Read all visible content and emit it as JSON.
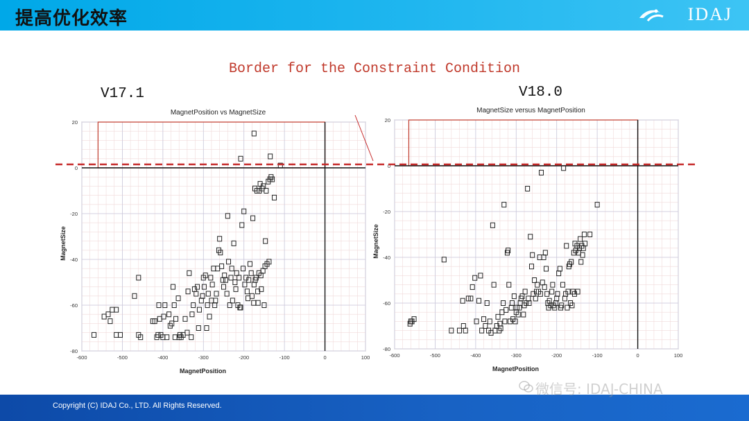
{
  "slide": {
    "title": "提高优化效率",
    "logo_text": "IDAJ",
    "subtitle": "Border for the Constraint Condition",
    "copyright": "Copyright (C) IDAJ Co., LTD. All Rights Reserved.",
    "watermark": "微信号: IDAJ-CHINA",
    "colors": {
      "header": "#00a8e8",
      "footer": "#0d4aa8",
      "border_line": "#c62828",
      "feasible_box": "#c0392b"
    }
  },
  "chart_data": [
    {
      "type": "scatter",
      "version_label": "V17.1",
      "title": "MagnetPosition vs MagnetSize",
      "xlabel": "MagnetPosition",
      "ylabel": "MagnetSize",
      "xlim": [
        -600,
        100
      ],
      "ylim": [
        -80,
        20
      ],
      "xticks": [
        -600,
        -500,
        -400,
        -300,
        -200,
        -100,
        0,
        100
      ],
      "yticks": [
        -80,
        -60,
        -40,
        -20,
        0,
        20
      ],
      "grid": true,
      "marker": "open-square",
      "feasible_region": {
        "x": [
          -560,
          0
        ],
        "y": [
          0,
          20
        ]
      },
      "points": [
        [
          -570,
          -73
        ],
        [
          -545,
          -65
        ],
        [
          -535,
          -64
        ],
        [
          -530,
          -67
        ],
        [
          -525,
          -62
        ],
        [
          -515,
          -62
        ],
        [
          -515,
          -73
        ],
        [
          -505,
          -73
        ],
        [
          -470,
          -56
        ],
        [
          -460,
          -48
        ],
        [
          -460,
          -73
        ],
        [
          -455,
          -74
        ],
        [
          -425,
          -67
        ],
        [
          -420,
          -67
        ],
        [
          -415,
          -74
        ],
        [
          -412,
          -73
        ],
        [
          -410,
          -60
        ],
        [
          -408,
          -66
        ],
        [
          -405,
          -73
        ],
        [
          -400,
          -74
        ],
        [
          -398,
          -65
        ],
        [
          -395,
          -60
        ],
        [
          -390,
          -74
        ],
        [
          -385,
          -64
        ],
        [
          -382,
          -69
        ],
        [
          -378,
          -68
        ],
        [
          -375,
          -52
        ],
        [
          -372,
          -60
        ],
        [
          -370,
          -74
        ],
        [
          -368,
          -66
        ],
        [
          -362,
          -57
        ],
        [
          -360,
          -74
        ],
        [
          -358,
          -73
        ],
        [
          -355,
          -74
        ],
        [
          -350,
          -73
        ],
        [
          -345,
          -66
        ],
        [
          -340,
          -72
        ],
        [
          -338,
          -54
        ],
        [
          -335,
          -46
        ],
        [
          -330,
          -74
        ],
        [
          -328,
          -64
        ],
        [
          -325,
          -60
        ],
        [
          -322,
          -53
        ],
        [
          -318,
          -55
        ],
        [
          -315,
          -52
        ],
        [
          -312,
          -70
        ],
        [
          -310,
          -62
        ],
        [
          -305,
          -58
        ],
        [
          -302,
          -56
        ],
        [
          -300,
          -48
        ],
        [
          -298,
          -52
        ],
        [
          -295,
          -47
        ],
        [
          -292,
          -70
        ],
        [
          -290,
          -60
        ],
        [
          -288,
          -55
        ],
        [
          -285,
          -65
        ],
        [
          -282,
          -48
        ],
        [
          -280,
          -58
        ],
        [
          -278,
          -51
        ],
        [
          -275,
          -44
        ],
        [
          -272,
          -60
        ],
        [
          -270,
          -58
        ],
        [
          -268,
          -55
        ],
        [
          -265,
          -44
        ],
        [
          -262,
          -36
        ],
        [
          -260,
          -31
        ],
        [
          -258,
          -37
        ],
        [
          -255,
          -43
        ],
        [
          -252,
          -49
        ],
        [
          -250,
          -52
        ],
        [
          -248,
          -47
        ],
        [
          -245,
          -49
        ],
        [
          -242,
          -55
        ],
        [
          -240,
          -21
        ],
        [
          -238,
          -41
        ],
        [
          -235,
          -60
        ],
        [
          -232,
          -48
        ],
        [
          -230,
          -44
        ],
        [
          -228,
          -58
        ],
        [
          -225,
          -33
        ],
        [
          -222,
          -50
        ],
        [
          -220,
          -53
        ],
        [
          -218,
          -46
        ],
        [
          -215,
          -60
        ],
        [
          -212,
          -48
        ],
        [
          -210,
          -61
        ],
        [
          -208,
          -61
        ],
        [
          -205,
          -25
        ],
        [
          -202,
          -44
        ],
        [
          -200,
          -19
        ],
        [
          -198,
          -51
        ],
        [
          -195,
          -48
        ],
        [
          -192,
          -54
        ],
        [
          -190,
          -57
        ],
        [
          -188,
          -49
        ],
        [
          -185,
          -42
        ],
        [
          -182,
          -46
        ],
        [
          -180,
          -56
        ],
        [
          -178,
          -22
        ],
        [
          -176,
          -59
        ],
        [
          -175,
          -51
        ],
        [
          -173,
          -9
        ],
        [
          -172,
          -49
        ],
        [
          -170,
          -48
        ],
        [
          -168,
          -10
        ],
        [
          -166,
          -54
        ],
        [
          -165,
          -59
        ],
        [
          -163,
          -46
        ],
        [
          -162,
          -10
        ],
        [
          -160,
          -7
        ],
        [
          -158,
          -47
        ],
        [
          -157,
          -53
        ],
        [
          -155,
          -9
        ],
        [
          -153,
          -45
        ],
        [
          -152,
          -8
        ],
        [
          -150,
          -60
        ],
        [
          -148,
          -43
        ],
        [
          -147,
          -32
        ],
        [
          -145,
          -10
        ],
        [
          -143,
          -42
        ],
        [
          -140,
          -6
        ],
        [
          -138,
          -41
        ],
        [
          -136,
          -5
        ],
        [
          -133,
          -4
        ],
        [
          -130,
          -5
        ],
        [
          -125,
          -13
        ],
        [
          -208,
          4
        ],
        [
          -175,
          15
        ],
        [
          -135,
          5
        ],
        [
          -110,
          1
        ]
      ]
    },
    {
      "type": "scatter",
      "version_label": "V18.0",
      "title": "MagnetSize versus MagnetPosition",
      "xlabel": "MagnetPosition",
      "ylabel": "MagnetSize",
      "xlim": [
        -600,
        100
      ],
      "ylim": [
        -80,
        20
      ],
      "xticks": [
        -600,
        -500,
        -400,
        -300,
        -200,
        -100,
        0,
        100
      ],
      "yticks": [
        -80,
        -60,
        -40,
        -20,
        0,
        20
      ],
      "grid": true,
      "marker": "open-square",
      "feasible_region": {
        "x": [
          -565,
          0
        ],
        "y": [
          0,
          20
        ]
      },
      "points": [
        [
          -562,
          -69
        ],
        [
          -560,
          -68
        ],
        [
          -557,
          -68
        ],
        [
          -552,
          -67
        ],
        [
          -478,
          -41
        ],
        [
          -460,
          -72
        ],
        [
          -440,
          -72
        ],
        [
          -432,
          -59
        ],
        [
          -430,
          -70
        ],
        [
          -425,
          -72
        ],
        [
          -418,
          -58
        ],
        [
          -412,
          -58
        ],
        [
          -408,
          -53
        ],
        [
          -402,
          -49
        ],
        [
          -398,
          -68
        ],
        [
          -392,
          -59
        ],
        [
          -388,
          -48
        ],
        [
          -385,
          -72
        ],
        [
          -380,
          -67
        ],
        [
          -376,
          -70
        ],
        [
          -372,
          -60
        ],
        [
          -368,
          -72
        ],
        [
          -365,
          -68
        ],
        [
          -362,
          -73
        ],
        [
          -358,
          -26
        ],
        [
          -355,
          -52
        ],
        [
          -352,
          -72
        ],
        [
          -348,
          -70
        ],
        [
          -345,
          -66
        ],
        [
          -342,
          -72
        ],
        [
          -340,
          -69
        ],
        [
          -338,
          -71
        ],
        [
          -335,
          -64
        ],
        [
          -332,
          -60
        ],
        [
          -330,
          -17
        ],
        [
          -328,
          -68
        ],
        [
          -325,
          -63
        ],
        [
          -322,
          -38
        ],
        [
          -320,
          -37
        ],
        [
          -318,
          -52
        ],
        [
          -315,
          -68
        ],
        [
          -312,
          -62
        ],
        [
          -310,
          -60
        ],
        [
          -308,
          -67
        ],
        [
          -305,
          -57
        ],
        [
          -302,
          -68
        ],
        [
          -300,
          -64
        ],
        [
          -298,
          -62
        ],
        [
          -295,
          -65
        ],
        [
          -292,
          -62
        ],
        [
          -290,
          -60
        ],
        [
          -288,
          -58
        ],
        [
          -285,
          -57
        ],
        [
          -282,
          -65
        ],
        [
          -280,
          -61
        ],
        [
          -278,
          -55
        ],
        [
          -275,
          -60
        ],
        [
          -272,
          -10
        ],
        [
          -270,
          -58
        ],
        [
          -268,
          -60
        ],
        [
          -265,
          -31
        ],
        [
          -262,
          -44
        ],
        [
          -260,
          -39
        ],
        [
          -258,
          -56
        ],
        [
          -255,
          -50
        ],
        [
          -252,
          -58
        ],
        [
          -250,
          -55
        ],
        [
          -248,
          -52
        ],
        [
          -245,
          -55
        ],
        [
          -242,
          -40
        ],
        [
          -240,
          -56
        ],
        [
          -238,
          -3
        ],
        [
          -235,
          -51
        ],
        [
          -232,
          -40
        ],
        [
          -230,
          -53
        ],
        [
          -228,
          -38
        ],
        [
          -226,
          -45
        ],
        [
          -224,
          -56
        ],
        [
          -222,
          -60
        ],
        [
          -220,
          -62
        ],
        [
          -218,
          -59
        ],
        [
          -215,
          -61
        ],
        [
          -212,
          -55
        ],
        [
          -210,
          -52
        ],
        [
          -208,
          -61
        ],
        [
          -205,
          -62
        ],
        [
          -202,
          -60
        ],
        [
          -200,
          -58
        ],
        [
          -198,
          -56
        ],
        [
          -195,
          -47
        ],
        [
          -192,
          -45
        ],
        [
          -190,
          -62
        ],
        [
          -188,
          -61
        ],
        [
          -185,
          -52
        ],
        [
          -183,
          -1
        ],
        [
          -180,
          -58
        ],
        [
          -178,
          -56
        ],
        [
          -176,
          -35
        ],
        [
          -174,
          -62
        ],
        [
          -172,
          -55
        ],
        [
          -170,
          -44
        ],
        [
          -168,
          -43
        ],
        [
          -166,
          -60
        ],
        [
          -164,
          -42
        ],
        [
          -162,
          -61
        ],
        [
          -160,
          -55
        ],
        [
          -158,
          -38
        ],
        [
          -156,
          -56
        ],
        [
          -155,
          -34
        ],
        [
          -153,
          -37
        ],
        [
          -150,
          -35
        ],
        [
          -148,
          -55
        ],
        [
          -146,
          -38
        ],
        [
          -144,
          -36
        ],
        [
          -142,
          -32
        ],
        [
          -140,
          -42
        ],
        [
          -138,
          -35
        ],
        [
          -136,
          -39
        ],
        [
          -134,
          -36
        ],
        [
          -132,
          -30
        ],
        [
          -130,
          -34
        ],
        [
          -118,
          -30
        ],
        [
          -100,
          -17
        ]
      ]
    }
  ]
}
